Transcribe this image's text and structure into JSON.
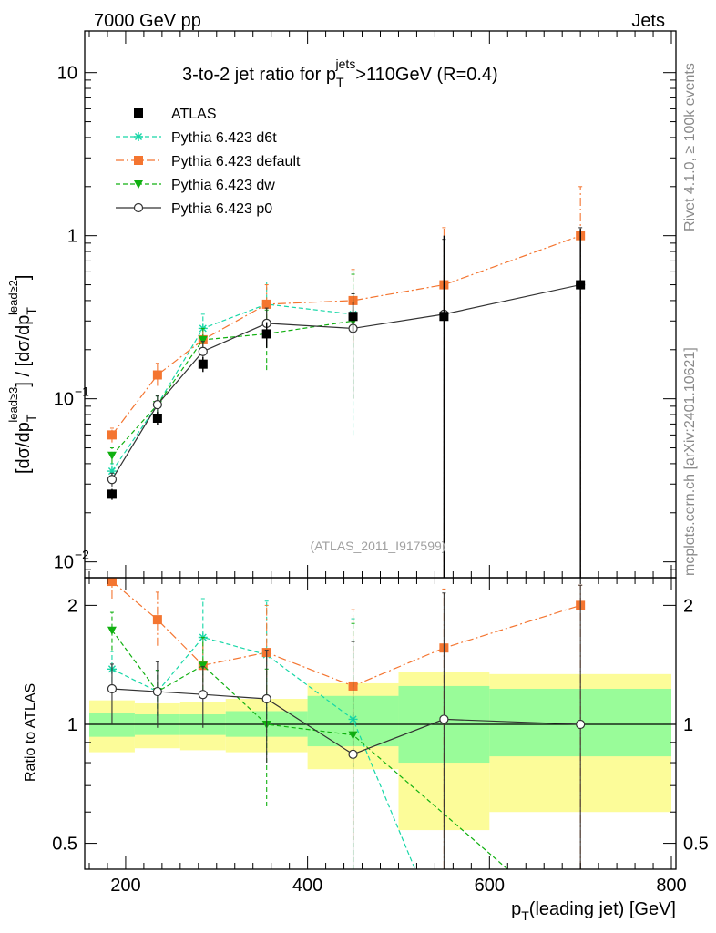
{
  "header": {
    "energy_label": "7000 GeV pp",
    "process_label": "Jets"
  },
  "side_labels": {
    "rivet": "Rivet 4.1.0, ≥ 100k events",
    "source": "mcplots.cern.ch [arXiv:2401.10621]"
  },
  "chart_data": [
    {
      "type": "line",
      "panel": "main",
      "title": "3-to-2 jet ratio for p_T^jets > 110GeV (R=0.4)",
      "title_parts": [
        "3-to-2 jet ratio for p",
        "T",
        "jets",
        ">110GeV (R=0.4)"
      ],
      "ylabel": "[dσ/dp_T^lead≥3] / [dσ/dp_T^lead≥2]",
      "ylabel_parts": [
        "[dσ/dp",
        "T",
        "lead≥3",
        "] / [dσ/dp",
        "T",
        "lead≥2",
        "]"
      ],
      "yscale": "log",
      "ylim": [
        0.008,
        18
      ],
      "xlim": [
        155,
        805
      ],
      "y_ticks": [
        {
          "value": 0.01,
          "label": "10",
          "exp": "−2"
        },
        {
          "value": 0.1,
          "label": "10",
          "exp": "−1"
        },
        {
          "value": 1,
          "label": "1",
          "exp": ""
        },
        {
          "value": 10,
          "label": "10",
          "exp": ""
        }
      ],
      "watermark": "(ATLAS_2011_I917599)",
      "legend_position": "top-left",
      "data": {
        "name": "ATLAS",
        "color": "#000000",
        "marker": "square",
        "x": [
          185,
          235,
          285,
          355,
          450,
          550,
          700
        ],
        "xerr": [
          [
            160,
            210
          ],
          [
            210,
            260
          ],
          [
            260,
            310
          ],
          [
            310,
            400
          ],
          [
            400,
            500
          ],
          [
            500,
            600
          ],
          [
            600,
            800
          ]
        ],
        "y": [
          0.026,
          0.076,
          0.163,
          0.25,
          0.32,
          0.32,
          0.5
        ],
        "yerr": [
          [
            0.024,
            0.028
          ],
          [
            0.069,
            0.083
          ],
          [
            0.146,
            0.18
          ],
          [
            0.205,
            0.295
          ],
          [
            0.25,
            0.39
          ],
          [
            0.0001,
            1.0
          ],
          [
            0.0001,
            1.1
          ]
        ]
      },
      "series": [
        {
          "name": "Pythia 6.423 d6t",
          "color": "#17d7a7",
          "marker": "star",
          "dash": "5,3",
          "x": [
            185,
            235,
            285,
            355,
            450
          ],
          "y": [
            0.036,
            0.092,
            0.27,
            0.38,
            0.33
          ],
          "yerr": [
            [
              0.032,
              0.04
            ],
            [
              0.08,
              0.104
            ],
            [
              0.22,
              0.33
            ],
            [
              0.3,
              0.52
            ],
            [
              0.06,
              0.6
            ]
          ]
        },
        {
          "name": "Pythia 6.423 default",
          "color": "#f47530",
          "marker": "square",
          "dash": "9,3,2,3",
          "x": [
            185,
            235,
            285,
            355,
            450,
            550,
            700
          ],
          "y": [
            0.06,
            0.14,
            0.23,
            0.38,
            0.4,
            0.5,
            1.0
          ],
          "yerr": [
            [
              0.054,
              0.066
            ],
            [
              0.12,
              0.165
            ],
            [
              0.19,
              0.27
            ],
            [
              0.3,
              0.5
            ],
            [
              0.22,
              0.62
            ],
            [
              0.0001,
              1.12
            ],
            [
              0.0001,
              2.0
            ]
          ]
        },
        {
          "name": "Pythia 6.423 dw",
          "color": "#10b010",
          "marker": "triangle-down",
          "dash": "5,3",
          "x": [
            185,
            235,
            285,
            355,
            450
          ],
          "y": [
            0.045,
            0.092,
            0.23,
            0.25,
            0.3
          ],
          "yerr": [
            [
              0.04,
              0.05
            ],
            [
              0.08,
              0.104
            ],
            [
              0.19,
              0.27
            ],
            [
              0.15,
              0.35
            ],
            [
              0.1,
              0.58
            ]
          ]
        },
        {
          "name": "Pythia 6.423 p0",
          "color": "#333333",
          "marker": "circle",
          "dash": "",
          "x": [
            185,
            235,
            285,
            355,
            450,
            550,
            700
          ],
          "y": [
            0.032,
            0.092,
            0.195,
            0.29,
            0.27,
            0.33,
            0.5
          ],
          "yerr": [
            [
              0.029,
              0.035
            ],
            [
              0.08,
              0.104
            ],
            [
              0.165,
              0.225
            ],
            [
              0.22,
              0.36
            ],
            [
              0.1,
              0.44
            ],
            [
              0.0001,
              0.95
            ],
            [
              0.0001,
              1.12
            ]
          ]
        }
      ]
    },
    {
      "type": "line",
      "panel": "ratio",
      "ylabel": "Ratio to ATLAS",
      "xlabel": "p_T(leading jet) [GeV]",
      "xlabel_parts": [
        "p",
        "T",
        "(leading jet) [GeV]"
      ],
      "yscale": "log",
      "ylim": [
        0.43,
        2.35
      ],
      "xlim": [
        155,
        805
      ],
      "x_ticks": [
        200,
        400,
        600,
        800
      ],
      "y_ticks": [
        0.5,
        1,
        2
      ],
      "reference_line": 1,
      "uncertainty_bands": {
        "bins": [
          [
            160,
            210
          ],
          [
            210,
            260
          ],
          [
            260,
            310
          ],
          [
            310,
            400
          ],
          [
            400,
            500
          ],
          [
            500,
            600
          ],
          [
            600,
            800
          ]
        ],
        "stat_low": [
          0.93,
          0.94,
          0.94,
          0.93,
          0.88,
          0.8,
          0.83
        ],
        "stat_high": [
          1.07,
          1.06,
          1.06,
          1.08,
          1.18,
          1.25,
          1.23
        ],
        "total_low": [
          0.85,
          0.87,
          0.86,
          0.85,
          0.77,
          0.54,
          0.6
        ],
        "total_high": [
          1.15,
          1.13,
          1.14,
          1.16,
          1.27,
          1.36,
          1.34
        ],
        "stat_color": "#99fc99",
        "total_color": "#fcfc99"
      },
      "series": [
        {
          "name": "Pythia 6.423 d6t",
          "color": "#17d7a7",
          "dash": "5,3",
          "x": [
            185,
            235,
            285,
            355,
            450,
            520
          ],
          "y": [
            1.38,
            1.21,
            1.66,
            1.5,
            1.03,
            0.42
          ],
          "yerr": [
            [
              1.23,
              1.53
            ],
            [
              1.05,
              1.37
            ],
            [
              1.3,
              2.08
            ],
            [
              1.05,
              2.05
            ],
            [
              0.19,
              1.85
            ],
            [
              null,
              null
            ]
          ]
        },
        {
          "name": "Pythia 6.423 default",
          "color": "#f47530",
          "dash": "9,3,2,3",
          "x": [
            185,
            235,
            285,
            355,
            450,
            550,
            700
          ],
          "y": [
            2.3,
            1.84,
            1.41,
            1.52,
            1.25,
            1.56,
            2.0
          ],
          "yerr": [
            [
              2.08,
              2.52
            ],
            [
              1.58,
              2.16
            ],
            [
              1.17,
              1.66
            ],
            [
              1.2,
              2.0
            ],
            [
              0.51,
              1.95
            ],
            [
              0.0001,
              2.2
            ],
            [
              0.0001,
              2.25
            ]
          ]
        },
        {
          "name": "Pythia 6.423 dw",
          "color": "#10b010",
          "dash": "5,3",
          "x": [
            185,
            235,
            285,
            355,
            450,
            625
          ],
          "y": [
            1.73,
            1.21,
            1.41,
            1.0,
            0.94,
            0.42
          ],
          "yerr": [
            [
              1.54,
              1.92
            ],
            [
              1.05,
              1.37
            ],
            [
              1.17,
              1.66
            ],
            [
              0.62,
              1.38
            ],
            [
              0.31,
              1.8
            ],
            [
              null,
              null
            ]
          ]
        },
        {
          "name": "Pythia 6.423 p0",
          "color": "#333333",
          "dash": "",
          "x": [
            185,
            235,
            285,
            355,
            450,
            550,
            700
          ],
          "y": [
            1.23,
            1.21,
            1.19,
            1.16,
            0.84,
            1.03,
            1.0
          ],
          "yerr": [
            [
              1.0,
              1.42
            ],
            [
              0.98,
              1.44
            ],
            [
              0.98,
              1.4
            ],
            [
              0.8,
              1.54
            ],
            [
              0.3,
              1.62
            ],
            [
              0.0001,
              2.15
            ],
            [
              0.0001,
              2.25
            ]
          ]
        }
      ]
    }
  ]
}
